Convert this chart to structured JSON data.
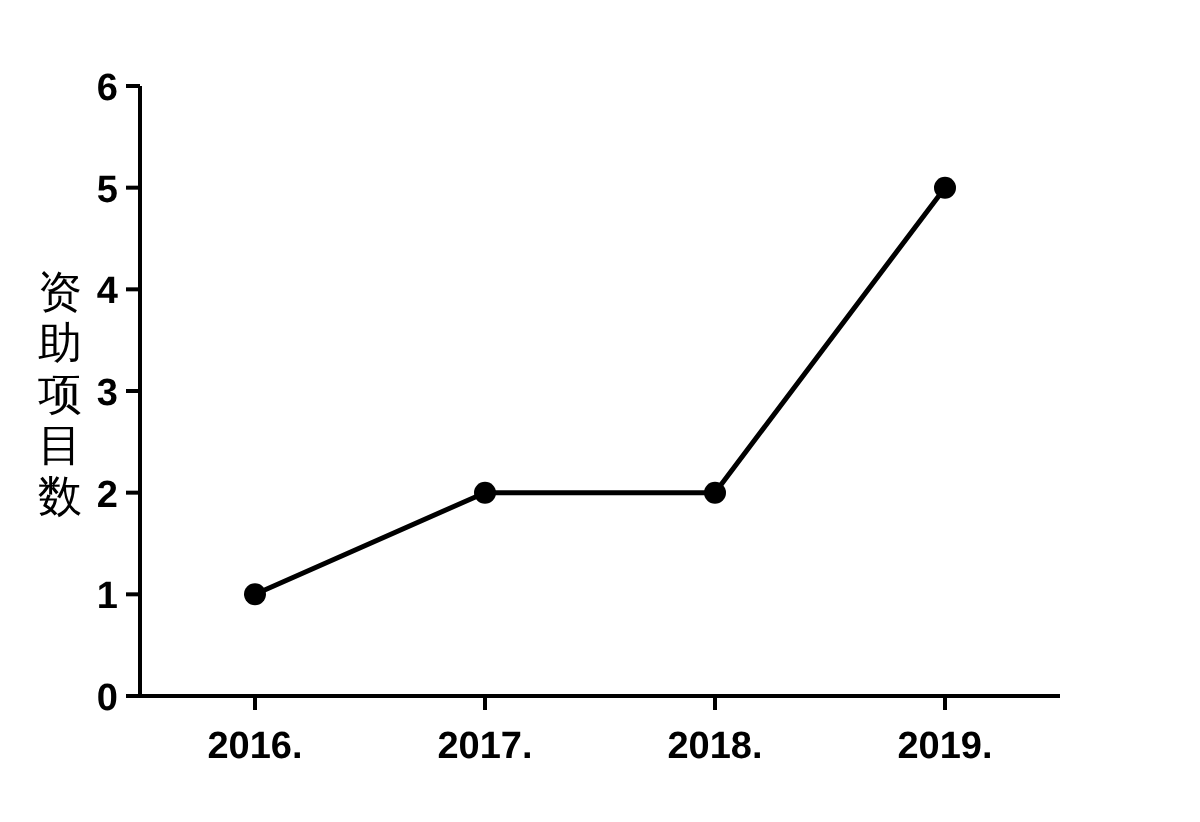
{
  "chart_data": {
    "type": "line",
    "ylabel": "资助项目数",
    "categories": [
      "2016.",
      "2017.",
      "2018.",
      "2019."
    ],
    "series": [
      {
        "color": "#000000",
        "values": [
          1,
          2,
          2,
          5
        ]
      }
    ],
    "ylim": [
      0,
      6
    ],
    "yticks": [
      0,
      1,
      2,
      3,
      4,
      5,
      6
    ],
    "marker": "circle",
    "line_style": "solid"
  }
}
